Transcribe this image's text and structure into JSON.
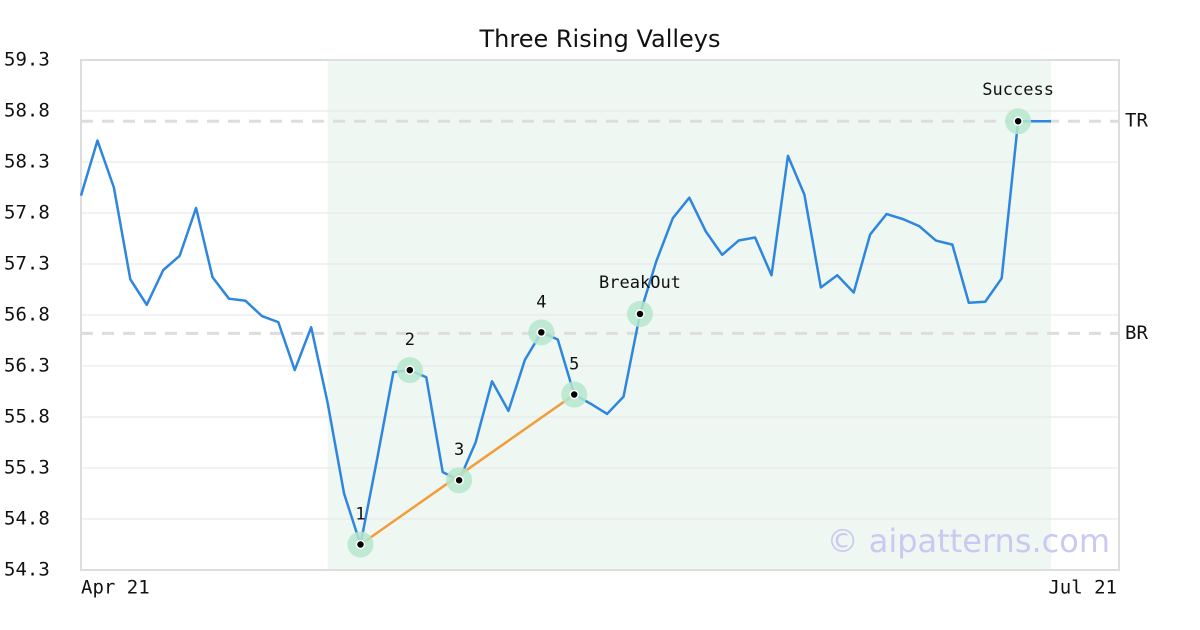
{
  "chart_data": {
    "type": "line",
    "title": "Three Rising Valleys",
    "categories": [
      "Apr 21",
      null,
      null,
      null,
      null,
      null,
      null,
      null,
      null,
      null,
      null,
      null,
      null,
      null,
      null,
      null,
      null,
      null,
      null,
      null,
      null,
      null,
      null,
      null,
      null,
      null,
      null,
      null,
      null,
      null,
      null,
      null,
      null,
      null,
      null,
      null,
      null,
      null,
      null,
      null,
      null,
      null,
      null,
      null,
      null,
      null,
      null,
      null,
      null,
      null,
      null,
      null,
      null,
      null,
      null,
      null,
      null,
      null,
      null,
      "Jul 21"
    ],
    "values": [
      57.97,
      58.51,
      58.05,
      57.15,
      56.9,
      57.24,
      57.38,
      57.85,
      57.17,
      56.96,
      56.94,
      56.79,
      56.73,
      56.26,
      56.68,
      55.94,
      55.05,
      54.55,
      55.38,
      56.24,
      56.26,
      56.19,
      55.26,
      55.18,
      55.55,
      56.15,
      55.86,
      56.36,
      56.63,
      56.56,
      56.02,
      55.93,
      55.83,
      56.0,
      56.81,
      57.33,
      57.75,
      57.95,
      57.62,
      57.39,
      57.53,
      57.56,
      57.19,
      58.36,
      57.98,
      57.07,
      57.19,
      57.02,
      57.59,
      57.79,
      57.74,
      57.67,
      57.53,
      57.49,
      56.92,
      56.93,
      57.16,
      58.7,
      58.7,
      58.7
    ],
    "color": "#2e86de",
    "ylim": [
      54.3,
      59.3
    ],
    "yticks": [
      54.3,
      54.8,
      55.3,
      55.8,
      56.3,
      56.8,
      57.3,
      57.8,
      58.3,
      58.8,
      59.3
    ],
    "grid": true,
    "shaded_range": [
      15,
      59
    ],
    "levels": [
      {
        "label": "TR",
        "value": 58.7
      },
      {
        "label": "BR",
        "value": 56.62
      }
    ],
    "trendline": {
      "from": 17,
      "to": 30,
      "color": "#f39c3c"
    },
    "annotations": [
      {
        "text": "1",
        "index": 17
      },
      {
        "text": "2",
        "index": 20
      },
      {
        "text": "3",
        "index": 23
      },
      {
        "text": "4",
        "index": 28
      },
      {
        "text": "5",
        "index": 30
      },
      {
        "text": "BreakOut",
        "index": 34
      },
      {
        "text": "Success",
        "index": 57
      }
    ],
    "watermark": "© aipatterns.com"
  }
}
